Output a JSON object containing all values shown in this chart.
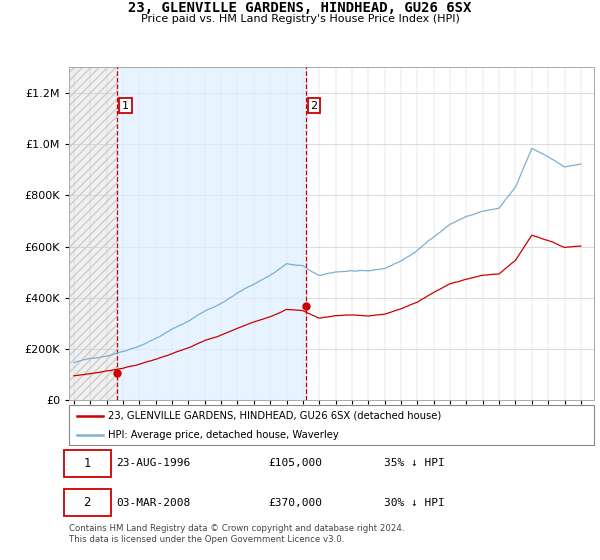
{
  "title": "23, GLENVILLE GARDENS, HINDHEAD, GU26 6SX",
  "subtitle": "Price paid vs. HM Land Registry's House Price Index (HPI)",
  "legend_line1": "23, GLENVILLE GARDENS, HINDHEAD, GU26 6SX (detached house)",
  "legend_line2": "HPI: Average price, detached house, Waverley",
  "annotation1_date": "23-AUG-1996",
  "annotation1_price": "£105,000",
  "annotation1_hpi": "35% ↓ HPI",
  "annotation2_date": "03-MAR-2008",
  "annotation2_price": "£370,000",
  "annotation2_hpi": "30% ↓ HPI",
  "footer": "Contains HM Land Registry data © Crown copyright and database right 2024.\nThis data is licensed under the Open Government Licence v3.0.",
  "hpi_color": "#7bafd4",
  "price_color": "#cc0000",
  "sale1_x": 1996.64,
  "sale1_y": 105000,
  "sale2_x": 2008.17,
  "sale2_y": 370000,
  "vline1_x": 1996.64,
  "vline2_x": 2008.17,
  "xmin": 1993.7,
  "xmax": 2025.8,
  "ylim": [
    0,
    1300000
  ],
  "yticks": [
    0,
    200000,
    400000,
    600000,
    800000,
    1000000,
    1200000
  ]
}
